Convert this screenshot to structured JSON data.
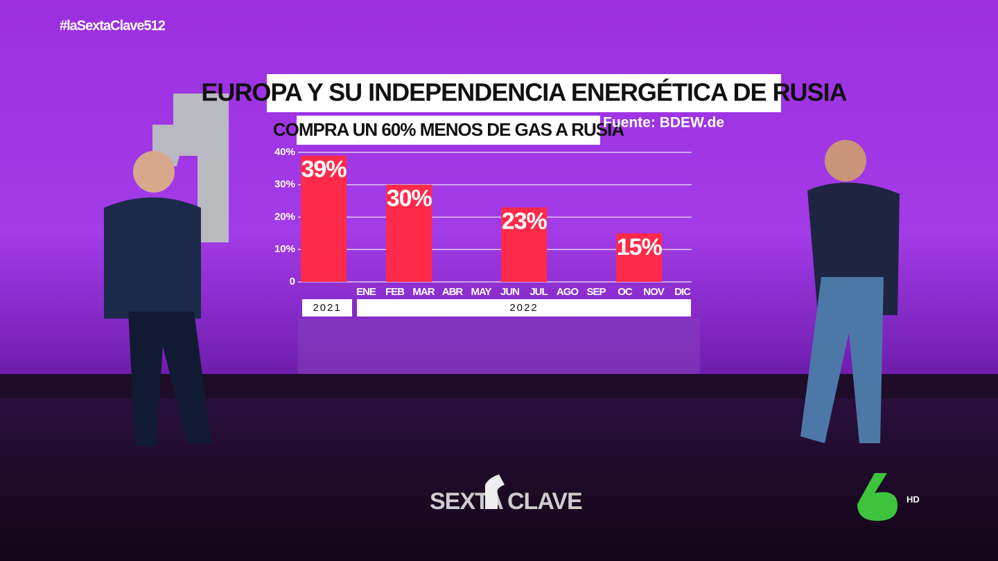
{
  "overlay": {
    "hashtag": "#laSextaClave512",
    "logo_left": "SEXTA",
    "logo_right": "CLAVE",
    "channel": "6",
    "quality": "HD"
  },
  "chart_data": {
    "type": "bar",
    "title": "EUROPA Y SU INDEPENDENCIA ENERGÉTICA DE RUSIA",
    "subtitle": "COMPRA UN 60% MENOS DE GAS A RUSIA",
    "source": "Fuente: BDEW.de",
    "categories": [
      null,
      "ENE",
      "FEB",
      "MAR",
      "ABR",
      "MAY",
      "JUN",
      "JUL",
      "AGO",
      "SEP",
      "OC",
      "NOV",
      "DIC"
    ],
    "period_labels": [
      "2021",
      "2022"
    ],
    "values": [
      39,
      null,
      30,
      null,
      null,
      null,
      23,
      null,
      null,
      null,
      15,
      null,
      null
    ],
    "value_labels": [
      "39%",
      null,
      "30%",
      null,
      null,
      null,
      "23%",
      null,
      null,
      null,
      "15%",
      null,
      null
    ],
    "color": "#ff2a4a",
    "ylim": [
      0,
      40
    ],
    "yticks": [
      0,
      {
        "value": 10,
        "label": "10%"
      },
      {
        "value": 20,
        "label": "20%"
      },
      {
        "value": 30,
        "label": "30%"
      },
      {
        "value": 40,
        "label": "40%"
      }
    ],
    "grid": true
  }
}
